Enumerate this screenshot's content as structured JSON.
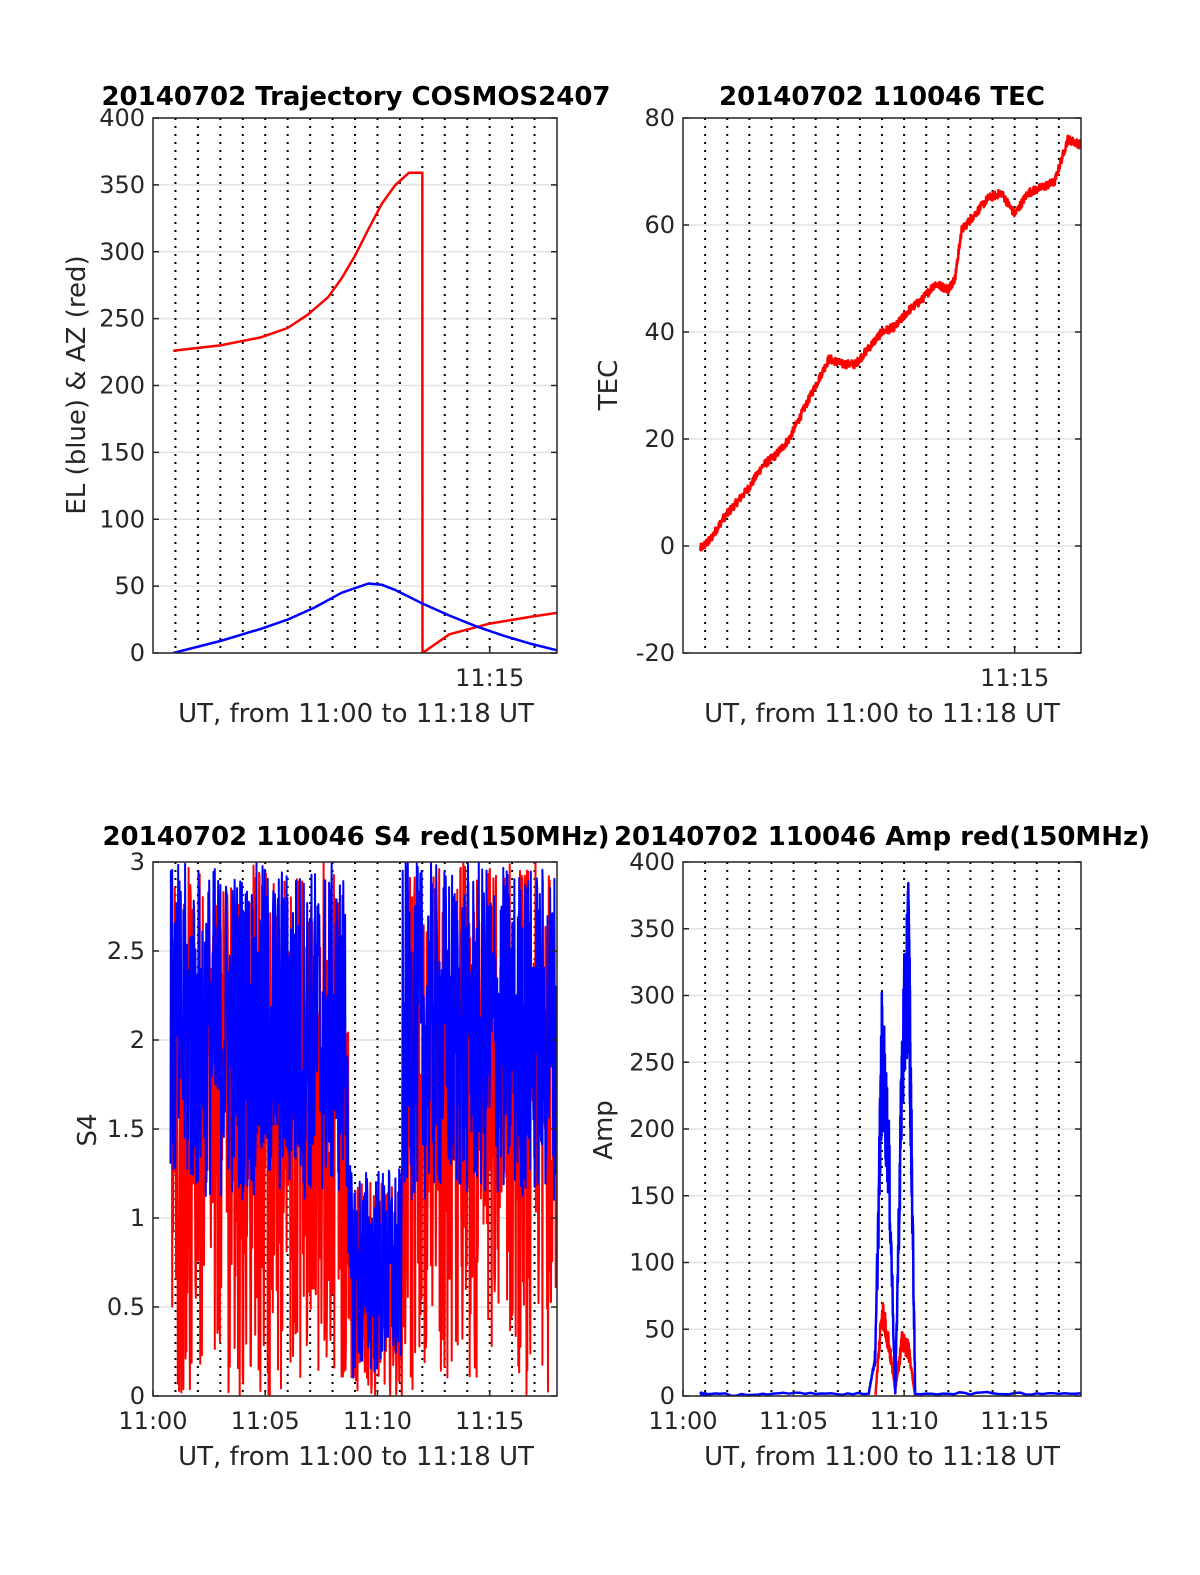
{
  "figure": {
    "panels": [
      {
        "id": "traj",
        "title": "20140702 Trajectory COSMOS2407",
        "xlabel": "UT, from 11:00 to 11:18 UT",
        "ylabel": "EL (blue) & AZ (red)"
      },
      {
        "id": "tec",
        "title": "20140702 110046 TEC",
        "xlabel": "UT, from 11:00 to 11:18 UT",
        "ylabel": "TEC"
      },
      {
        "id": "s4",
        "title": "20140702 110046 S4 red(150MHz)",
        "xlabel": "UT, from 11:00 to 11:18 UT",
        "ylabel": "S4"
      },
      {
        "id": "amp",
        "title": "20140702 110046 Amp red(150MHz)",
        "xlabel": "UT, from 11:00 to 11:18 UT",
        "ylabel": "Amp"
      }
    ]
  },
  "chart_data": [
    {
      "type": "line",
      "title": "20140702 Trajectory COSMOS2407",
      "xlabel": "UT, from 11:00 to 11:18 UT",
      "ylabel": "EL (blue) & AZ (red)",
      "xlim": [
        11.0,
        11.3
      ],
      "ylim": [
        0,
        400
      ],
      "yticks": [
        0,
        50,
        100,
        150,
        200,
        250,
        300,
        350,
        400
      ],
      "xticks": [
        {
          "value": 11.25,
          "label": "11:15"
        }
      ],
      "grid": true,
      "series": [
        {
          "color": "#ff0000",
          "x": [
            11.015,
            11.05,
            11.08,
            11.1,
            11.115,
            11.13,
            11.14,
            11.15,
            11.16,
            11.17,
            11.18,
            11.19,
            11.2,
            11.2001,
            11.22,
            11.25,
            11.28,
            11.3
          ],
          "y": [
            226,
            230,
            236,
            243,
            253,
            266,
            280,
            297,
            317,
            336,
            350,
            359,
            359,
            0,
            14,
            22,
            27,
            30
          ]
        },
        {
          "color": "#0000ff",
          "x": [
            11.015,
            11.05,
            11.08,
            11.1,
            11.12,
            11.14,
            11.16,
            11.17,
            11.18,
            11.19,
            11.2,
            11.22,
            11.24,
            11.26,
            11.28,
            11.3
          ],
          "y": [
            0,
            9,
            18,
            25,
            34,
            45,
            52,
            51,
            47,
            42,
            37,
            28,
            20,
            13,
            7,
            2
          ]
        }
      ]
    },
    {
      "type": "line",
      "title": "20140702 110046 TEC",
      "xlabel": "UT, from 11:00 to 11:18 UT",
      "ylabel": "TEC",
      "xlim": [
        11.0,
        11.3
      ],
      "ylim": [
        -20,
        80
      ],
      "yticks": [
        -20,
        0,
        20,
        40,
        60,
        80
      ],
      "xticks": [
        {
          "value": 11.25,
          "label": "11:15"
        }
      ],
      "grid": true,
      "series": [
        {
          "color": "#ff0000",
          "x": [
            11.013,
            11.02,
            11.03,
            11.04,
            11.05,
            11.06,
            11.07,
            11.08,
            11.09,
            11.1,
            11.11,
            11.12,
            11.13,
            11.14,
            11.15,
            11.16,
            11.17,
            11.18,
            11.19,
            11.2,
            11.205,
            11.21,
            11.22,
            11.23,
            11.24,
            11.25,
            11.26,
            11.27,
            11.28,
            11.29,
            11.3
          ],
          "y": [
            -0.5,
            1,
            5,
            8,
            11,
            15,
            17,
            20,
            25,
            30,
            35,
            34,
            34,
            37,
            40,
            41,
            44,
            46,
            49,
            48,
            50,
            59,
            62,
            65,
            66,
            62,
            66,
            67,
            68,
            76,
            75
          ]
        }
      ]
    },
    {
      "type": "line",
      "title": "20140702 110046 S4 red(150MHz)",
      "xlabel": "UT, from 11:00 to 11:18 UT",
      "ylabel": "S4",
      "xlim": [
        11.0,
        11.3
      ],
      "ylim": [
        0,
        3
      ],
      "yticks": [
        0,
        0.5,
        1,
        1.5,
        2,
        2.5,
        3
      ],
      "xticks": [
        {
          "value": 11.0,
          "label": "11:00"
        },
        {
          "value": 11.0833,
          "label": "11:05"
        },
        {
          "value": 11.1667,
          "label": "11:10"
        },
        {
          "value": 11.25,
          "label": "11:15"
        }
      ],
      "grid": true,
      "series": [
        {
          "color": "#ff0000",
          "x": [
            11.013,
            11.3
          ],
          "y_range": [
            0,
            3
          ],
          "note": "dense noisy signal filling 0 to 3"
        },
        {
          "color": "#0000ff",
          "x": [
            11.013,
            11.3
          ],
          "y_range": [
            0.1,
            3
          ],
          "note": "dense noisy signal mostly 1.2 to 3, dips near 11:09-11:11"
        }
      ]
    },
    {
      "type": "line",
      "title": "20140702 110046 Amp red(150MHz)",
      "xlabel": "UT, from 11:00 to 11:18 UT",
      "ylabel": "Amp",
      "xlim": [
        11.0,
        11.3
      ],
      "ylim": [
        0,
        400
      ],
      "yticks": [
        0,
        50,
        100,
        150,
        200,
        250,
        300,
        350,
        400
      ],
      "xticks": [
        {
          "value": 11.0,
          "label": "11:00"
        },
        {
          "value": 11.0833,
          "label": "11:05"
        },
        {
          "value": 11.1667,
          "label": "11:10"
        },
        {
          "value": 11.25,
          "label": "11:15"
        }
      ],
      "grid": true,
      "series": [
        {
          "color": "#ff0000",
          "x": [
            11.145,
            11.15,
            11.155,
            11.16,
            11.165,
            11.17,
            11.175
          ],
          "y": [
            0,
            64,
            40,
            5,
            40,
            35,
            0
          ]
        },
        {
          "color": "#0000ff",
          "x": [
            11.013,
            11.02,
            11.14,
            11.145,
            11.15,
            11.155,
            11.16,
            11.165,
            11.17,
            11.172,
            11.175,
            11.3
          ],
          "y": [
            2,
            1,
            2,
            30,
            260,
            180,
            2,
            240,
            338,
            200,
            2,
            2
          ]
        }
      ]
    }
  ]
}
